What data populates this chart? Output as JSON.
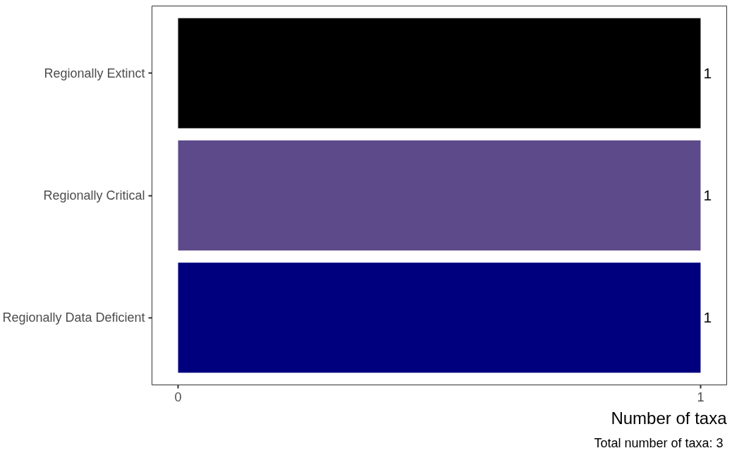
{
  "chart_data": {
    "type": "bar",
    "orientation": "horizontal",
    "categories": [
      "Regionally Extinct",
      "Regionally Critical",
      "Regionally Data Deficient"
    ],
    "values": [
      1,
      1,
      1
    ],
    "colors": [
      "#000000",
      "#5d4a8a",
      "#00007f"
    ],
    "xlim": [
      -0.05,
      1.05
    ],
    "xticks": [
      0,
      1
    ],
    "xlabel": "Number of taxa",
    "annotations": [
      "Total number of taxa:  3"
    ],
    "data_labels": true,
    "grid": false
  }
}
